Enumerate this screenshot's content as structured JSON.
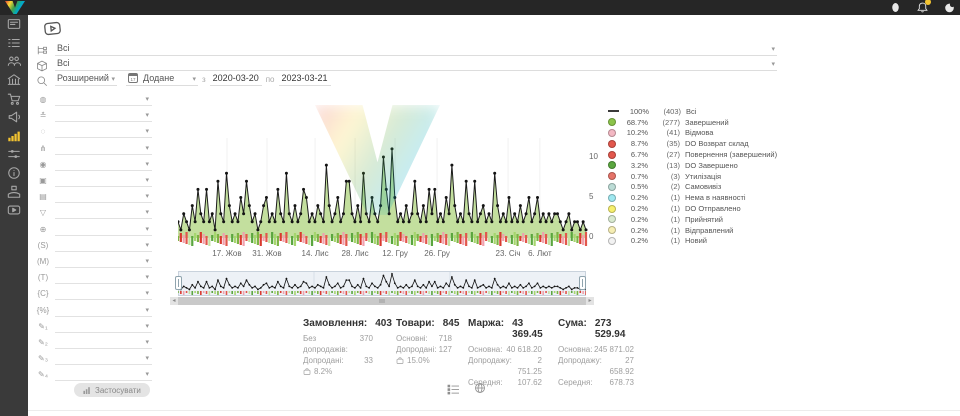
{
  "topbar": {
    "icons": [
      "profile-icon",
      "notifications-icon",
      "theme-icon"
    ],
    "notification_badge_color": "#f4c430"
  },
  "sidebar": {
    "active_color": "#f4c430",
    "items": [
      {
        "icon": "dashboard-icon"
      },
      {
        "icon": "orders-icon"
      },
      {
        "icon": "clients-icon"
      },
      {
        "icon": "warehouse-icon"
      },
      {
        "icon": "cart-icon"
      },
      {
        "icon": "marketing-icon"
      },
      {
        "icon": "analytics-icon",
        "active": true
      },
      {
        "icon": "integrations-icon"
      },
      {
        "icon": "info-icon"
      },
      {
        "icon": "services-icon"
      },
      {
        "icon": "video-icon"
      }
    ]
  },
  "filters_top": {
    "video_button_icon": "video-tutorial-icon",
    "rows": [
      {
        "icon": "tree-icon",
        "value": "Всі"
      },
      {
        "icon": "package-icon",
        "value": "Всі"
      }
    ],
    "search_row": {
      "icon": "search-icon",
      "mode_value": "Розширений",
      "date_field_label": "Додане",
      "calendar_icon_text": "17",
      "from_label": "з",
      "from_value": "2020-03-20",
      "to_label": "по",
      "to_value": "2023-03-21"
    }
  },
  "filter_panel": {
    "rows": [
      {
        "glyph": "◍",
        "name": "globe"
      },
      {
        "glyph": "≛",
        "name": "layers"
      },
      {
        "glyph": "◌",
        "name": "circle"
      },
      {
        "glyph": "⋔",
        "name": "network"
      },
      {
        "glyph": "◉",
        "name": "fingerprint"
      },
      {
        "glyph": "▣",
        "name": "cube"
      },
      {
        "glyph": "▤",
        "name": "banknote"
      },
      {
        "glyph": "▽",
        "name": "funnel"
      },
      {
        "glyph": "⊕",
        "name": "web"
      },
      {
        "glyph": "(S)",
        "name": "s-param"
      },
      {
        "glyph": "(M)",
        "name": "m-param"
      },
      {
        "glyph": "(T)",
        "name": "t-param"
      },
      {
        "glyph": "{C}",
        "name": "c-param"
      },
      {
        "glyph": "{%}",
        "name": "percent-param"
      },
      {
        "glyph": "✎₁",
        "name": "pencil-1"
      },
      {
        "glyph": "✎₂",
        "name": "pencil-2"
      },
      {
        "glyph": "✎₃",
        "name": "pencil-3"
      },
      {
        "glyph": "✎₄",
        "name": "pencil-4"
      }
    ],
    "apply_button_label": "Застосувати"
  },
  "chart_data": {
    "type": "line",
    "title": "",
    "xlabel": "",
    "ylabel": "",
    "ylim": [
      0,
      12
    ],
    "yticks": [
      "10",
      "5",
      "0"
    ],
    "xticks": [
      {
        "label": "17. Жов",
        "pos": 0.12
      },
      {
        "label": "31. Жов",
        "pos": 0.218
      },
      {
        "label": "14. Лис",
        "pos": 0.336
      },
      {
        "label": "28. Лис",
        "pos": 0.434
      },
      {
        "label": "12. Гру",
        "pos": 0.532
      },
      {
        "label": "26. Гру",
        "pos": 0.635
      },
      {
        "label": "23. Січ",
        "pos": 0.809
      },
      {
        "label": "6. Лют",
        "pos": 0.887
      }
    ],
    "line_color": "#1c1c1c",
    "area_color": "#bcdb93",
    "bar_palette": [
      "#7cb342",
      "#e2574c",
      "#a5d66e",
      "#f0a1ad",
      "#5aa63f",
      "#d93a2f",
      "#c5e1a5"
    ],
    "series": [
      {
        "name": "Всі",
        "values": [
          2,
          1,
          3,
          2,
          1,
          4,
          2,
          6,
          3,
          2,
          6,
          2,
          3,
          1,
          7,
          3,
          2,
          8,
          4,
          2,
          3,
          2,
          5,
          3,
          7,
          4,
          2,
          3,
          1,
          2,
          4,
          5,
          2,
          3,
          2,
          6,
          3,
          2,
          8,
          3,
          2,
          4,
          2,
          3,
          6,
          5,
          2,
          3,
          2,
          4,
          3,
          2,
          9,
          4,
          2,
          3,
          5,
          2,
          3,
          7,
          7,
          3,
          2,
          4,
          2,
          8,
          3,
          2,
          5,
          3,
          2,
          4,
          10,
          6,
          3,
          11,
          5,
          2,
          3,
          2,
          4,
          2,
          3,
          7,
          3,
          2,
          4,
          2,
          6,
          3,
          6,
          2,
          3,
          2,
          5,
          3,
          9,
          4,
          2,
          3,
          2,
          7,
          3,
          2,
          7,
          2,
          3,
          4,
          2,
          3,
          2,
          8,
          4,
          2,
          3,
          2,
          5,
          2,
          3,
          2,
          4,
          2,
          3,
          5,
          2,
          3,
          5,
          2,
          3,
          2,
          3,
          2,
          3,
          3,
          2,
          1,
          2,
          3,
          1,
          2,
          2,
          1,
          2,
          1
        ]
      }
    ],
    "legend_position": "right",
    "legend": [
      {
        "swatch": "line",
        "color": "#3a3a3a",
        "percent": "100%",
        "count": "(403)",
        "label": "Всі"
      },
      {
        "swatch": "dot",
        "color": "#8bc34a",
        "percent": "68.7%",
        "count": "(277)",
        "label": "Завершений"
      },
      {
        "swatch": "dot",
        "color": "#f3b8c3",
        "percent": "10.2%",
        "count": "(41)",
        "label": "Відмова"
      },
      {
        "swatch": "dot",
        "color": "#e2574c",
        "percent": "8.7%",
        "count": "(35)",
        "label": "DO Возврат склад"
      },
      {
        "swatch": "dot",
        "color": "#e2574c",
        "percent": "6.7%",
        "count": "(27)",
        "label": "Повернення (завершений)"
      },
      {
        "swatch": "dot",
        "color": "#5aa63f",
        "percent": "3.2%",
        "count": "(13)",
        "label": "DO Завершено"
      },
      {
        "swatch": "dot",
        "color": "#e57368",
        "percent": "0.7%",
        "count": "(3)",
        "label": "Утилізація"
      },
      {
        "swatch": "dot",
        "color": "#bcdcd6",
        "percent": "0.5%",
        "count": "(2)",
        "label": "Самовивіз"
      },
      {
        "swatch": "dot",
        "color": "#9fe8f0",
        "percent": "0.2%",
        "count": "(1)",
        "label": "Нема в наявності"
      },
      {
        "swatch": "dot",
        "color": "#f7f06e",
        "percent": "0.2%",
        "count": "(1)",
        "label": "DO Отправлено"
      },
      {
        "swatch": "dot",
        "color": "#d9ead0",
        "percent": "0.2%",
        "count": "(1)",
        "label": "Прийнятий"
      },
      {
        "swatch": "dot",
        "color": "#f6eeb4",
        "percent": "0.2%",
        "count": "(1)",
        "label": "Відправлений"
      },
      {
        "swatch": "dot",
        "color": "#f2f2f2",
        "percent": "0.2%",
        "count": "(1)",
        "label": "Новий"
      }
    ]
  },
  "stats": {
    "columns": [
      {
        "title": "Замовлення:",
        "value": "403",
        "rows": [
          {
            "label": "Без допродажів:",
            "value": "370"
          },
          {
            "label": "Допродані:",
            "value": "33"
          },
          {
            "icon": "bag-icon",
            "label": "",
            "value": "8.2%"
          }
        ]
      },
      {
        "title": "Товари:",
        "value": "845",
        "rows": [
          {
            "label": "Основні:",
            "value": "718"
          },
          {
            "label": "Допродані:",
            "value": "127"
          },
          {
            "icon": "bag-icon",
            "label": "",
            "value": "15.0%"
          }
        ]
      },
      {
        "title": "Маржа:",
        "value": "43 369.45",
        "rows": [
          {
            "label": "Основна:",
            "value": "40 618.20"
          },
          {
            "label": "Допродажу:",
            "value": "2 751.25"
          },
          {
            "label": "Середня:",
            "value": "107.62"
          }
        ]
      },
      {
        "title": "Сума:",
        "value": "273 529.94",
        "rows": [
          {
            "label": "Основна:",
            "value": "245 871.02"
          },
          {
            "label": "Допродажу:",
            "value": "27 658.92"
          },
          {
            "label": "Середня:",
            "value": "678.73"
          }
        ]
      }
    ]
  },
  "footer": {
    "icons": [
      "list-view-icon",
      "globe-icon"
    ]
  }
}
